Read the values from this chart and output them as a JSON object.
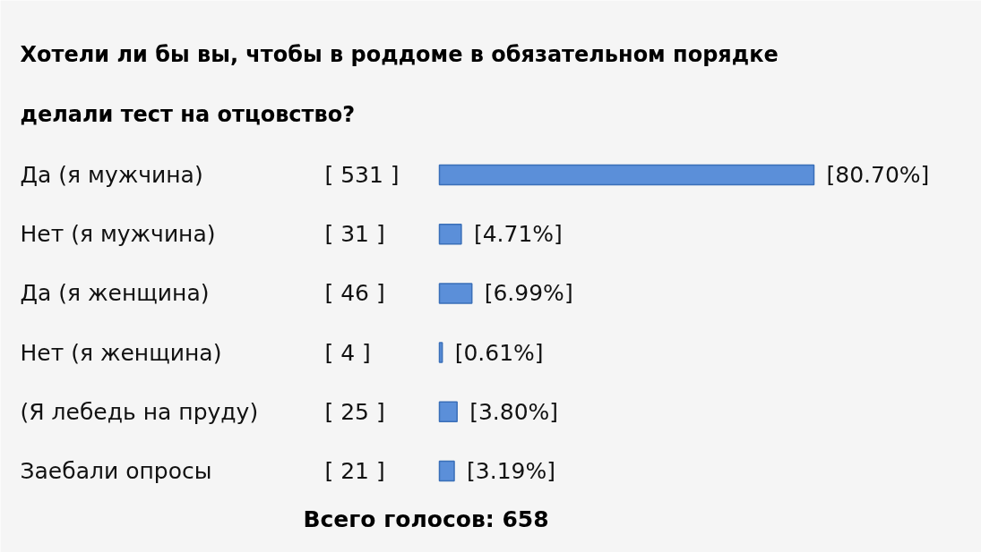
{
  "chart_data": {
    "type": "bar",
    "orientation": "horizontal",
    "title": "Хотели ли бы вы, чтобы в роддоме в обязательном порядке делали тест на отцовство?",
    "categories": [
      "Да (я мужчина)",
      "Нет (я мужчина)",
      "Да (я женщина)",
      "Нет (я женщина)",
      "(Я лебедь на пруду)",
      "Заебали опросы"
    ],
    "values": [
      80.7,
      4.71,
      6.99,
      0.61,
      3.8,
      3.19
    ],
    "color": "#5b8fd9",
    "value_labels": [
      "[80.70%]",
      "[4.71%]",
      "[6.99%]",
      "[0.61%]",
      "[3.80%]",
      "[3.19%]"
    ],
    "annotations": [
      "[ 531 ]",
      "[ 31 ]",
      "[ 46 ]",
      "[ 4 ]",
      "[ 25 ]",
      "[ 21 ]",
      "Всего голосов: 658"
    ]
  }
}
